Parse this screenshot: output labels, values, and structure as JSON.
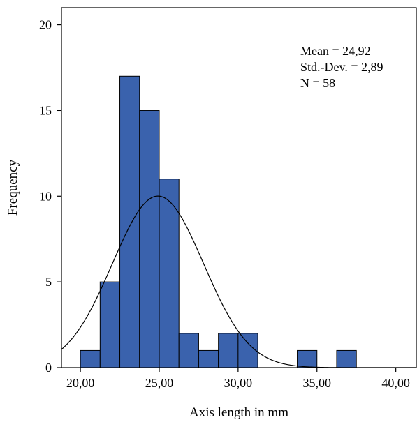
{
  "chart_data": {
    "type": "bar",
    "subtype": "histogram",
    "bins": [
      {
        "x0": 20.0,
        "x1": 21.25,
        "count": 1
      },
      {
        "x0": 21.25,
        "x1": 22.5,
        "count": 5
      },
      {
        "x0": 22.5,
        "x1": 23.75,
        "count": 17
      },
      {
        "x0": 23.75,
        "x1": 25.0,
        "count": 15
      },
      {
        "x0": 25.0,
        "x1": 26.25,
        "count": 11
      },
      {
        "x0": 26.25,
        "x1": 27.5,
        "count": 2
      },
      {
        "x0": 27.5,
        "x1": 28.75,
        "count": 1
      },
      {
        "x0": 28.75,
        "x1": 30.0,
        "count": 2
      },
      {
        "x0": 30.0,
        "x1": 31.25,
        "count": 2
      },
      {
        "x0": 33.75,
        "x1": 35.0,
        "count": 1
      },
      {
        "x0": 36.25,
        "x1": 37.5,
        "count": 1
      }
    ],
    "normal_curve": {
      "mean": 24.92,
      "sd": 2.89,
      "n": 58,
      "bin_width": 1.25
    },
    "xlabel": "Axis length in mm",
    "ylabel": "Frequency",
    "xlim": [
      18.8,
      41.3
    ],
    "ylim": [
      0,
      21
    ],
    "x_ticks": [
      20,
      25,
      30,
      35,
      40
    ],
    "x_tick_labels": [
      "20,00",
      "25,00",
      "30,00",
      "35,00",
      "40,00"
    ],
    "y_ticks": [
      0,
      5,
      10,
      15,
      20
    ],
    "y_tick_labels": [
      "0",
      "5",
      "10",
      "15",
      "20"
    ],
    "stats_text": [
      "Mean = 24,92",
      "Std.-Dev. = 2,89",
      "N = 58"
    ],
    "bar_color": "#3a62ad",
    "bar_edge_color": "#000000",
    "curve_color": "#000000",
    "grid": false
  }
}
